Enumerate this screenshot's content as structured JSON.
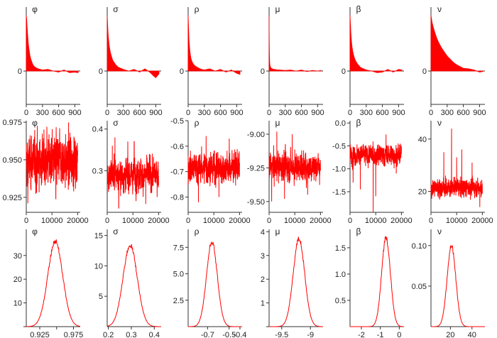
{
  "accent_color": "#ff0000",
  "chart_data": [
    {
      "type": "area",
      "title": "φ",
      "xlim": [
        0,
        1000
      ],
      "ylim": [
        -0.6,
        1.15
      ],
      "xticks": [
        "0",
        "300",
        "600",
        "900"
      ],
      "yticks": [
        "0"
      ],
      "x": [
        0,
        5,
        10,
        15,
        20,
        25,
        30,
        40,
        50,
        60,
        70,
        80,
        100,
        120,
        150,
        180,
        220,
        300,
        400,
        500,
        600,
        700,
        800,
        900,
        960
      ],
      "y": [
        1.0,
        0.96,
        0.9,
        0.82,
        0.74,
        0.66,
        0.59,
        0.48,
        0.4,
        0.33,
        0.27,
        0.23,
        0.17,
        0.12,
        0.08,
        0.06,
        0.04,
        0.02,
        0.03,
        0.0,
        -0.02,
        0.02,
        -0.03,
        -0.02,
        -0.03
      ]
    },
    {
      "type": "area",
      "title": "σ",
      "xlim": [
        0,
        1000
      ],
      "ylim": [
        -0.6,
        1.15
      ],
      "xticks": [
        "0",
        "300",
        "600",
        "900"
      ],
      "yticks": [
        "0"
      ],
      "x": [
        0,
        5,
        10,
        15,
        20,
        30,
        40,
        50,
        60,
        80,
        100,
        130,
        160,
        200,
        250,
        300,
        400,
        500,
        600,
        700,
        800,
        850,
        900,
        960
      ],
      "y": [
        1.0,
        0.9,
        0.78,
        0.7,
        0.63,
        0.52,
        0.44,
        0.38,
        0.33,
        0.26,
        0.2,
        0.15,
        0.11,
        0.07,
        0.05,
        0.03,
        0.0,
        0.03,
        -0.02,
        0.04,
        -0.03,
        -0.08,
        -0.12,
        -0.05
      ]
    },
    {
      "type": "area",
      "title": "ρ",
      "xlim": [
        0,
        1000
      ],
      "ylim": [
        -0.6,
        1.15
      ],
      "xticks": [
        "0",
        "300",
        "600",
        "900"
      ],
      "yticks": [
        "0"
      ],
      "x": [
        0,
        5,
        10,
        15,
        20,
        30,
        40,
        50,
        60,
        80,
        100,
        130,
        160,
        200,
        250,
        300,
        400,
        500,
        600,
        700,
        800,
        900,
        960
      ],
      "y": [
        1.0,
        0.86,
        0.72,
        0.6,
        0.5,
        0.38,
        0.3,
        0.24,
        0.2,
        0.15,
        0.12,
        0.09,
        0.07,
        0.05,
        0.03,
        0.02,
        0.04,
        0.0,
        0.03,
        -0.02,
        0.02,
        -0.04,
        -0.06
      ]
    },
    {
      "type": "area",
      "title": "μ",
      "xlim": [
        0,
        1000
      ],
      "ylim": [
        -0.6,
        1.15
      ],
      "xticks": [
        "0",
        "300",
        "600",
        "900"
      ],
      "yticks": [
        "0"
      ],
      "x": [
        0,
        3,
        6,
        10,
        15,
        20,
        30,
        40,
        60,
        80,
        100,
        150,
        200,
        300,
        400,
        500,
        600,
        700,
        800,
        900,
        960
      ],
      "y": [
        1.0,
        0.55,
        0.3,
        0.18,
        0.12,
        0.09,
        0.06,
        0.05,
        0.04,
        0.03,
        0.03,
        0.02,
        0.02,
        0.01,
        0.02,
        0.0,
        0.02,
        -0.01,
        0.01,
        0.0,
        0.01
      ]
    },
    {
      "type": "area",
      "title": "β",
      "xlim": [
        0,
        1000
      ],
      "ylim": [
        -0.6,
        1.15
      ],
      "xticks": [
        "0",
        "300",
        "600",
        "900"
      ],
      "yticks": [
        "0"
      ],
      "x": [
        0,
        5,
        10,
        15,
        20,
        30,
        40,
        50,
        60,
        80,
        100,
        130,
        160,
        200,
        250,
        300,
        400,
        500,
        600,
        700,
        800,
        900,
        960
      ],
      "y": [
        1.0,
        0.9,
        0.8,
        0.7,
        0.62,
        0.5,
        0.42,
        0.36,
        0.31,
        0.24,
        0.19,
        0.14,
        0.1,
        0.06,
        0.04,
        0.02,
        0.0,
        -0.03,
        -0.02,
        0.03,
        -0.02,
        0.03,
        0.02
      ]
    },
    {
      "type": "area",
      "title": "ν",
      "xlim": [
        0,
        1000
      ],
      "ylim": [
        -0.6,
        1.15
      ],
      "xticks": [
        "0",
        "300",
        "600",
        "900"
      ],
      "yticks": [
        "0"
      ],
      "x": [
        0,
        10,
        20,
        40,
        60,
        80,
        100,
        130,
        160,
        200,
        250,
        300,
        350,
        400,
        450,
        500,
        600,
        700,
        800,
        900,
        960
      ],
      "y": [
        1.0,
        0.94,
        0.88,
        0.8,
        0.73,
        0.67,
        0.61,
        0.54,
        0.48,
        0.41,
        0.34,
        0.27,
        0.22,
        0.17,
        0.13,
        0.1,
        0.05,
        0.04,
        0.02,
        -0.02,
        -0.01
      ]
    },
    {
      "type": "line",
      "title": "φ",
      "xlim": [
        0,
        21000
      ],
      "ylim": [
        0.915,
        0.976
      ],
      "xticks": [
        0,
        10000,
        20000
      ],
      "yticks": [
        0.925,
        0.95,
        0.975
      ],
      "yticklabels": [
        "0.925",
        "0.950",
        "0.975"
      ],
      "x": [
        0,
        20000
      ],
      "mean": 0.949,
      "spread": 0.011,
      "spikes": [
        [
          600,
          0.921
        ],
        [
          4000,
          0.928
        ],
        [
          8000,
          0.972
        ],
        [
          11500,
          0.924
        ],
        [
          13000,
          0.971
        ],
        [
          17000,
          0.968
        ]
      ]
    },
    {
      "type": "line",
      "title": "σ",
      "xlim": [
        0,
        21000
      ],
      "ylim": [
        0.2,
        0.42
      ],
      "xticks": [
        0,
        10000,
        20000
      ],
      "yticks": [
        0.3,
        0.4
      ],
      "yticklabels": [
        "0.3",
        "0.4"
      ],
      "x": [
        0,
        20000
      ],
      "mean": 0.29,
      "spread": 0.025,
      "spikes": [
        [
          2000,
          0.36
        ],
        [
          3000,
          0.38
        ],
        [
          4500,
          0.21
        ],
        [
          8000,
          0.37
        ],
        [
          10500,
          0.37
        ],
        [
          15000,
          0.22
        ]
      ]
    },
    {
      "type": "line",
      "title": "ρ",
      "xlim": [
        0,
        21000
      ],
      "ylim": [
        -0.86,
        -0.5
      ],
      "xticks": [
        0,
        10000,
        20000
      ],
      "yticks": [
        -0.8,
        -0.7,
        -0.6,
        -0.5
      ],
      "yticklabels": [
        "-0.8",
        "-0.7",
        "-0.6",
        "-0.5"
      ],
      "x": [
        0,
        20000
      ],
      "mean": -0.685,
      "spread": 0.04,
      "spikes": [
        [
          4000,
          -0.82
        ],
        [
          7000,
          -0.56
        ],
        [
          12000,
          -0.8
        ],
        [
          16000,
          -0.57
        ]
      ]
    },
    {
      "type": "line",
      "title": "μ",
      "xlim": [
        0,
        21000
      ],
      "ylim": [
        -9.58,
        -8.9
      ],
      "xticks": [
        0,
        10000,
        20000
      ],
      "yticks": [
        -9.5,
        -9.25,
        -9.0
      ],
      "yticklabels": [
        "-9.50",
        "-9.25",
        "-9.00"
      ],
      "x": [
        0,
        20000
      ],
      "mean": -9.24,
      "spread": 0.07,
      "spikes": [
        [
          1000,
          -9.5
        ],
        [
          3000,
          -8.98
        ],
        [
          6000,
          -9.48
        ],
        [
          9000,
          -9.0
        ],
        [
          15000,
          -9.45
        ]
      ]
    },
    {
      "type": "line",
      "title": "β",
      "xlim": [
        0,
        21000
      ],
      "ylim": [
        -1.95,
        0.05
      ],
      "xticks": [
        0,
        10000,
        20000
      ],
      "yticks": [
        -1.5,
        -1.0,
        -0.5,
        0.0
      ],
      "yticklabels": [
        "-1.5",
        "-1.0",
        "-0.5",
        "0.0"
      ],
      "x": [
        0,
        20000
      ],
      "mean": -0.7,
      "spread": 0.15,
      "spikes": [
        [
          1200,
          -1.3
        ],
        [
          4000,
          -1.45
        ],
        [
          9000,
          -1.95
        ],
        [
          10000,
          -1.6
        ],
        [
          14000,
          -0.25
        ],
        [
          18000,
          -1.1
        ]
      ]
    },
    {
      "type": "line",
      "title": "ν",
      "xlim": [
        0,
        21000
      ],
      "ylim": [
        12,
        47
      ],
      "xticks": [
        0,
        10000,
        20000
      ],
      "yticks": [
        20,
        40
      ],
      "yticklabels": [
        "20",
        "40"
      ],
      "x": [
        0,
        20000
      ],
      "mean": 21.5,
      "spread": 2.3,
      "spikes": [
        [
          5000,
          35
        ],
        [
          8000,
          44
        ],
        [
          10000,
          33
        ],
        [
          12000,
          36
        ],
        [
          16000,
          31
        ],
        [
          19000,
          14
        ]
      ]
    },
    {
      "type": "line",
      "title": "φ",
      "xlim": [
        0.905,
        0.985
      ],
      "ylim": [
        0,
        41
      ],
      "xticks": [
        0.925,
        0.95,
        0.975
      ],
      "xticklabels": [
        "0.925",
        "",
        "0.975"
      ],
      "yticks": [
        0,
        10,
        20,
        30
      ],
      "yticklabels": [
        "",
        "10",
        "20",
        "30"
      ],
      "curve": {
        "mu": 0.948,
        "sd": 0.011,
        "peak": 36
      }
    },
    {
      "type": "line",
      "title": "σ",
      "xlim": [
        0.195,
        0.43
      ],
      "ylim": [
        0,
        16
      ],
      "xticks": [
        0.2,
        0.3,
        0.4
      ],
      "xticklabels": [
        "0.2",
        "0.3",
        "0.4"
      ],
      "yticks": [
        5,
        10,
        15
      ],
      "yticklabels": [
        "5",
        "10",
        "15"
      ],
      "curve": {
        "mu": 0.295,
        "sd": 0.031,
        "peak": 13.4
      }
    },
    {
      "type": "line",
      "title": "ρ",
      "xlim": [
        -0.88,
        -0.38
      ],
      "ylim": [
        0,
        9.2
      ],
      "xticks": [
        -0.7,
        -0.5,
        -0.4
      ],
      "xticklabels": [
        "-0.7",
        "-0.5",
        "-0.4"
      ],
      "yticks": [
        2.5,
        5,
        7.5
      ],
      "yticklabels": [
        "2.5",
        "5.0",
        "7.5"
      ],
      "curve": {
        "mu": -0.66,
        "sd": 0.05,
        "peak": 8.0
      }
    },
    {
      "type": "line",
      "title": "μ",
      "xlim": [
        -9.72,
        -8.78
      ],
      "ylim": [
        0,
        4.1
      ],
      "xticks": [
        -9.5,
        -9.0
      ],
      "xticklabels": [
        "-9.5",
        "-9"
      ],
      "yticks": [
        0,
        1,
        2,
        3,
        4
      ],
      "yticklabels": [
        "",
        "1",
        "2",
        "3",
        "4"
      ],
      "curve": {
        "mu": -9.2,
        "sd": 0.1,
        "peak": 3.7
      }
    },
    {
      "type": "line",
      "title": "β",
      "xlim": [
        -2.6,
        0.25
      ],
      "ylim": [
        0,
        1.85
      ],
      "xticks": [
        -2,
        -1,
        0
      ],
      "xticklabels": [
        "-2",
        "-1",
        "0"
      ],
      "yticks": [
        0.5,
        1.0,
        1.5
      ],
      "yticklabels": [
        "0.5",
        "1.0",
        "1.5"
      ],
      "curve": {
        "mu": -0.7,
        "sd": 0.23,
        "peak": 1.7
      }
    },
    {
      "type": "line",
      "title": "ν",
      "xlim": [
        2,
        52
      ],
      "ylim": [
        0,
        0.12
      ],
      "xticks": [
        20,
        40
      ],
      "xticklabels": [
        "20",
        "40"
      ],
      "yticks": [
        0.05,
        0.1
      ],
      "yticklabels": [
        "0.05",
        "0.10"
      ],
      "curve": {
        "mu": 21,
        "sd": 4.0,
        "peak": 0.1
      }
    }
  ]
}
